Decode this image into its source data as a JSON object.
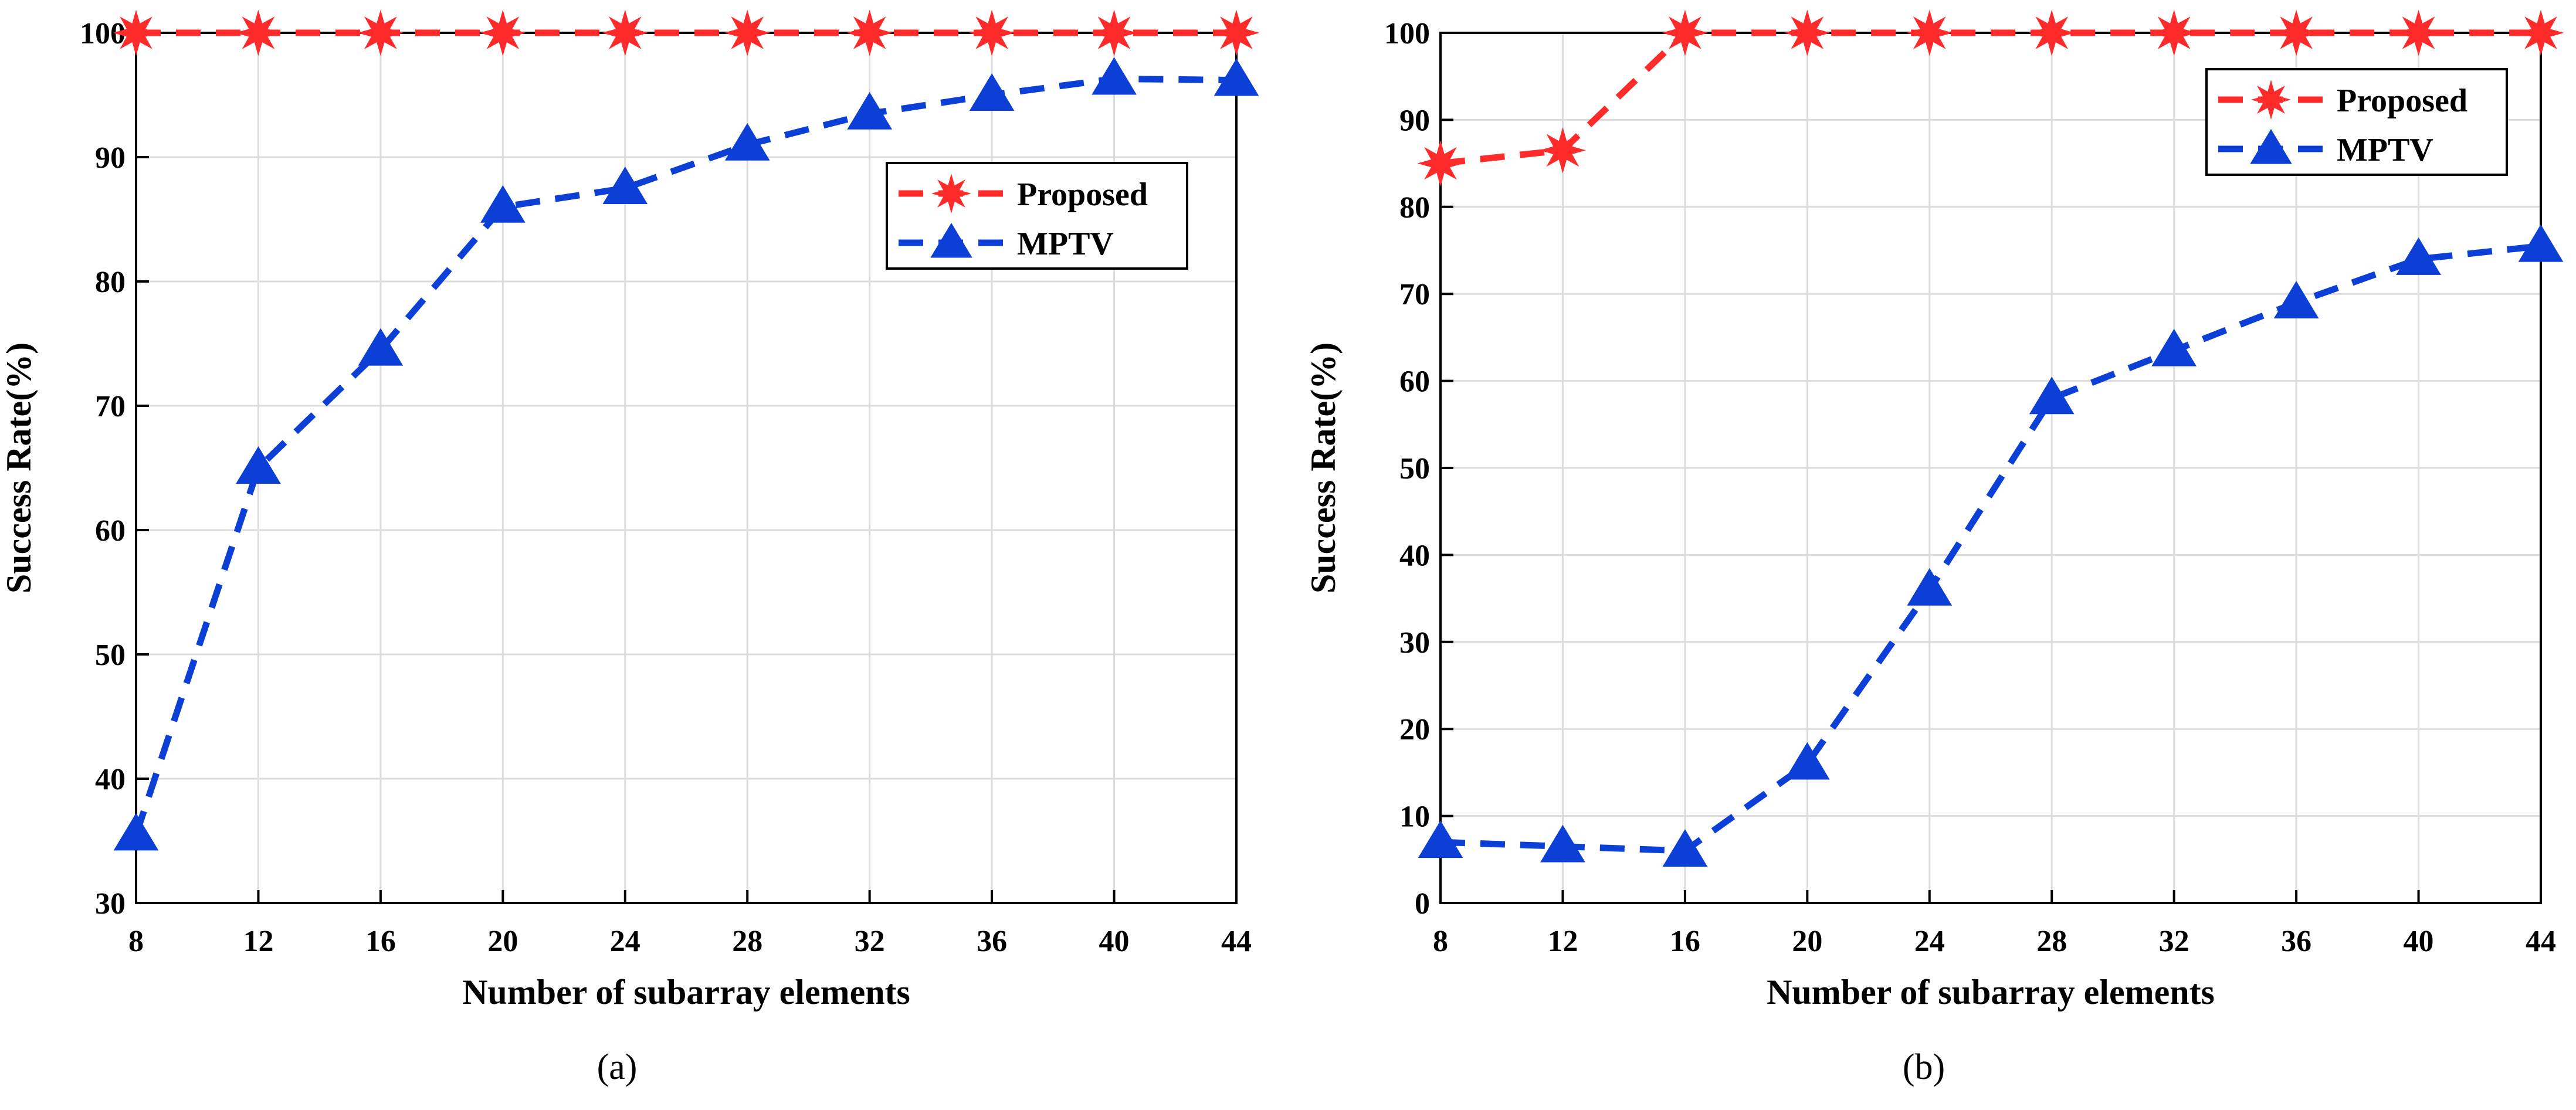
{
  "chart_data": [
    {
      "type": "line",
      "panel": "a",
      "caption": "(a)",
      "xlabel": "Number of subarray elements",
      "ylabel": "Success Rate(%)",
      "x": [
        8,
        12,
        16,
        20,
        24,
        28,
        32,
        36,
        40,
        44
      ],
      "xlim": [
        8,
        44
      ],
      "ylim": [
        30,
        100
      ],
      "xticks": [
        8,
        12,
        16,
        20,
        24,
        28,
        32,
        36,
        40,
        44
      ],
      "yticks": [
        30,
        40,
        50,
        60,
        70,
        80,
        90,
        100
      ],
      "grid": true,
      "legend_position": "upper-right",
      "series": [
        {
          "name": "Proposed",
          "color": "#ff2a2a",
          "marker": "star",
          "values": [
            100,
            100,
            100,
            100,
            100,
            100,
            100,
            100,
            100,
            100
          ]
        },
        {
          "name": "MPTV",
          "color": "#0b3fd6",
          "marker": "triangle",
          "values": [
            35.5,
            65,
            74.5,
            86,
            87.5,
            91,
            93.5,
            95,
            96.3,
            96.2
          ]
        }
      ]
    },
    {
      "type": "line",
      "panel": "b",
      "caption": "(b)",
      "xlabel": "Number of subarray elements",
      "ylabel": "Success Rate(%)",
      "x": [
        8,
        12,
        16,
        20,
        24,
        28,
        32,
        36,
        40,
        44
      ],
      "xlim": [
        8,
        44
      ],
      "ylim": [
        0,
        100
      ],
      "xticks": [
        8,
        12,
        16,
        20,
        24,
        28,
        32,
        36,
        40,
        44
      ],
      "yticks": [
        0,
        10,
        20,
        30,
        40,
        50,
        60,
        70,
        80,
        90,
        100
      ],
      "grid": true,
      "legend_position": "top-right",
      "series": [
        {
          "name": "Proposed",
          "color": "#ff2a2a",
          "marker": "star",
          "values": [
            85,
            86.5,
            100,
            100,
            100,
            100,
            100,
            100,
            100,
            100
          ]
        },
        {
          "name": "MPTV",
          "color": "#0b3fd6",
          "marker": "triangle",
          "values": [
            7,
            6.5,
            6,
            16,
            36,
            58,
            63.5,
            69,
            74,
            75.5
          ]
        }
      ]
    }
  ]
}
